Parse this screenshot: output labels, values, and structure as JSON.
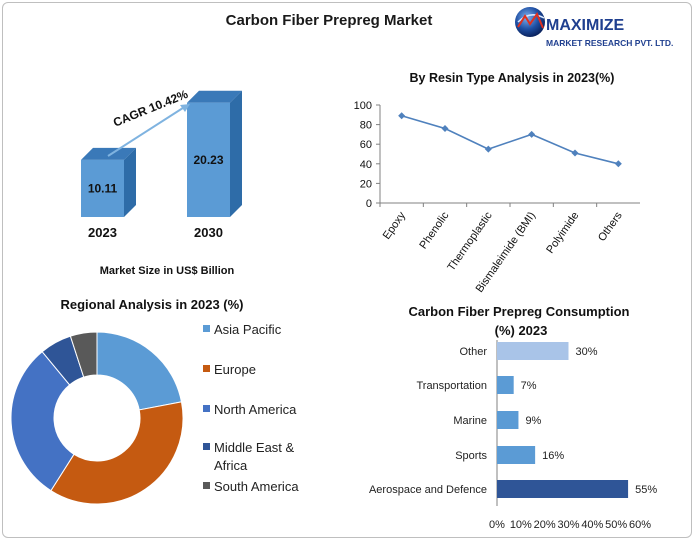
{
  "title": "Carbon Fiber Prepreg Market",
  "logo": {
    "line1": "MAXIMIZE",
    "line2": "MARKET RESEARCH PVT. LTD."
  },
  "colors": {
    "bar_blue": "#5b9bd5",
    "bar_blue_dark": "#2e6ca8",
    "line_blue": "#4f81bd",
    "pie_asia": "#5b9bd5",
    "pie_europe": "#c55a11",
    "pie_na": "#4472c4",
    "pie_mea": "#2f5597",
    "pie_sa": "#595959",
    "cons_other": "#a9c4e8",
    "cons_mid": "#5b9bd5",
    "cons_dark": "#2f5597"
  },
  "market_size": {
    "cagr_label": "CAGR 10.42%",
    "caption": "Market Size in US$ Billion"
  },
  "chart_data": [
    {
      "type": "bar",
      "categories": [
        "2023",
        "2030"
      ],
      "values": [
        10.11,
        20.23
      ],
      "value_labels": [
        "10.11",
        "20.23"
      ]
    },
    {
      "type": "line",
      "title": "By Resin Type Analysis in  2023(%)",
      "categories": [
        "Epoxy",
        "Phenolic",
        "Thermoplastic",
        "Bismaleimide (BMI)",
        "Polyimide",
        "Others"
      ],
      "values": [
        89,
        76,
        55,
        70,
        51,
        40
      ],
      "ylim": [
        0,
        100
      ],
      "yticks": [
        "0",
        "20",
        "40",
        "60",
        "80",
        "100"
      ]
    },
    {
      "type": "pie",
      "title": "Regional Analysis in 2023 (%)",
      "categories": [
        "Asia Pacific",
        "Europe",
        "North America",
        "Middle East & Africa",
        "South America"
      ],
      "values": [
        22,
        37,
        30,
        6,
        5
      ]
    },
    {
      "type": "bar",
      "orientation": "horizontal",
      "title": "Carbon Fiber Prepreg Consumption (%) 2023",
      "categories": [
        "Other",
        "Transportation",
        "Marine",
        "Sports",
        "Aerospace and Defence"
      ],
      "values": [
        30,
        7,
        9,
        16,
        55
      ],
      "value_labels": [
        "30%",
        "7%",
        "9%",
        "16%",
        "55%"
      ],
      "xlim": [
        0,
        60
      ],
      "xticks": [
        "0%",
        "10%",
        "20%",
        "30%",
        "40%",
        "50%",
        "60%"
      ]
    }
  ]
}
